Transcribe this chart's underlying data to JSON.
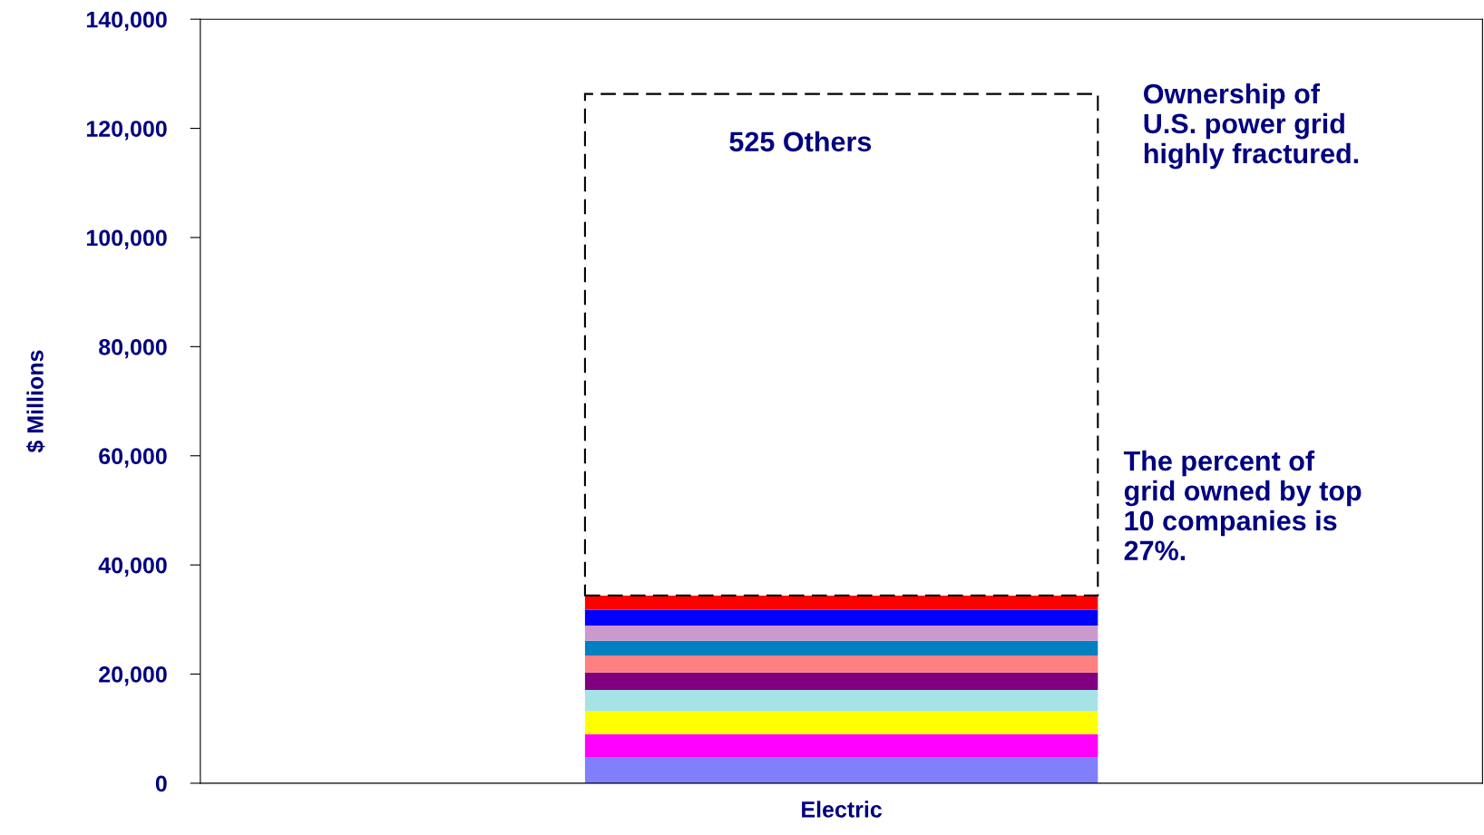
{
  "chart_data": {
    "type": "bar",
    "stacked": true,
    "ylabel": "$ Millions",
    "categories": [
      "Electric"
    ],
    "ylim": [
      0,
      140000
    ],
    "yticks": [
      {
        "value": 0,
        "label": "0"
      },
      {
        "value": 20000,
        "label": "20,000"
      },
      {
        "value": 40000,
        "label": "40,000"
      },
      {
        "value": 60000,
        "label": "60,000"
      },
      {
        "value": 80000,
        "label": "80,000"
      },
      {
        "value": 100000,
        "label": "100,000"
      },
      {
        "value": 120000,
        "label": "120,000"
      },
      {
        "value": 140000,
        "label": "140,000"
      }
    ],
    "series": [
      {
        "color": "#8080ff",
        "values": [
          4800
        ]
      },
      {
        "color": "#ff00ff",
        "values": [
          4200
        ]
      },
      {
        "color": "#ffff00",
        "values": [
          4200
        ]
      },
      {
        "color": "#a6e3e6",
        "values": [
          3900
        ]
      },
      {
        "color": "#800080",
        "values": [
          3200
        ]
      },
      {
        "color": "#ff8080",
        "values": [
          3100
        ]
      },
      {
        "color": "#0080c0",
        "values": [
          2700
        ]
      },
      {
        "color": "#cc99cc",
        "values": [
          2800
        ]
      },
      {
        "color": "#0000ff",
        "values": [
          2900
        ]
      },
      {
        "color": "#ff0000",
        "values": [
          2600
        ]
      },
      {
        "name": "525 Others",
        "color": "#ffffff",
        "line_style": "dashed",
        "values": [
          91900
        ]
      }
    ],
    "annotations": [
      "Ownership of\nU.S. power grid\nhighly fractured.",
      "The percent of\ngrid owned by top\n10 companies is\n27%."
    ],
    "grid": false,
    "legend": false
  }
}
